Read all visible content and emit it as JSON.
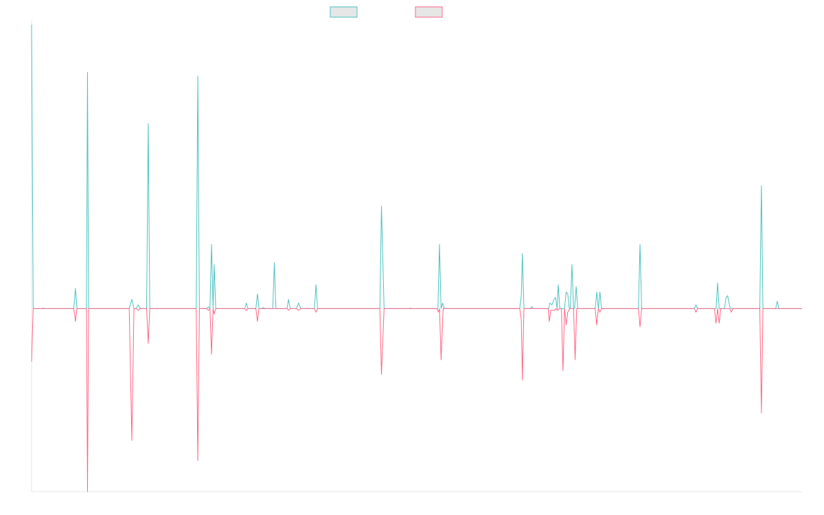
{
  "chart_data": {
    "type": "line",
    "title": "",
    "xlabel": "",
    "ylabel": "",
    "grid": false,
    "legend": {
      "position": "top-center"
    },
    "x_range": [
      0,
      146
    ],
    "y_range": [
      -100,
      155
    ],
    "series": [
      {
        "color": "#4bc0c0",
        "fill": "#e6e6e6",
        "points": [
          [
            0,
            155
          ],
          [
            0.3,
            0
          ],
          [
            2,
            0
          ],
          [
            2.2,
            0.3
          ],
          [
            2.4,
            0
          ],
          [
            8,
            0
          ],
          [
            8.3,
            11
          ],
          [
            8.6,
            0
          ],
          [
            10.4,
            0
          ],
          [
            10.6,
            129
          ],
          [
            10.8,
            0
          ],
          [
            18.5,
            0
          ],
          [
            19,
            5
          ],
          [
            19.4,
            0
          ],
          [
            19.8,
            0
          ],
          [
            20.2,
            2
          ],
          [
            20.6,
            0
          ],
          [
            21.8,
            0
          ],
          [
            22.1,
            101
          ],
          [
            22.4,
            0
          ],
          [
            31.2,
            0
          ],
          [
            31.5,
            127
          ],
          [
            31.8,
            0
          ],
          [
            33.2,
            0
          ],
          [
            33.5,
            1
          ],
          [
            33.8,
            0
          ],
          [
            34.1,
            35
          ],
          [
            34.4,
            0
          ],
          [
            34.6,
            24
          ],
          [
            34.9,
            0
          ],
          [
            40.4,
            0
          ],
          [
            40.7,
            3
          ],
          [
            41,
            0
          ],
          [
            42.5,
            0
          ],
          [
            42.8,
            8
          ],
          [
            43.1,
            0
          ],
          [
            43.6,
            0
          ],
          [
            43.9,
            0.5
          ],
          [
            44.2,
            0
          ],
          [
            45.7,
            0
          ],
          [
            46,
            25
          ],
          [
            46.3,
            0
          ],
          [
            48.4,
            0
          ],
          [
            48.7,
            5
          ],
          [
            49,
            0
          ],
          [
            50.2,
            0
          ],
          [
            50.6,
            3
          ],
          [
            51,
            0
          ],
          [
            53.6,
            0
          ],
          [
            53.9,
            13
          ],
          [
            54.2,
            0
          ],
          [
            66,
            0
          ],
          [
            66.3,
            56
          ],
          [
            66.8,
            0
          ],
          [
            71.6,
            0
          ],
          [
            71.8,
            0.3
          ],
          [
            72,
            0
          ],
          [
            77,
            0
          ],
          [
            77.3,
            35
          ],
          [
            77.6,
            0
          ],
          [
            77.9,
            3
          ],
          [
            78.2,
            0
          ],
          [
            92.5,
            0
          ],
          [
            92.8,
            7
          ],
          [
            93,
            30
          ],
          [
            93.3,
            0
          ],
          [
            94.5,
            0
          ],
          [
            94.8,
            1
          ],
          [
            95.1,
            0
          ],
          [
            98,
            0
          ],
          [
            98.2,
            3
          ],
          [
            98.6,
            2
          ],
          [
            99,
            5
          ],
          [
            99.3,
            6
          ],
          [
            99.6,
            0
          ],
          [
            99.8,
            13
          ],
          [
            100.1,
            0
          ],
          [
            101,
            0
          ],
          [
            101.3,
            9
          ],
          [
            101.6,
            8
          ],
          [
            101.9,
            0
          ],
          [
            102.1,
            0
          ],
          [
            102.4,
            24
          ],
          [
            102.7,
            0
          ],
          [
            102.9,
            0
          ],
          [
            103.2,
            12
          ],
          [
            103.5,
            0
          ],
          [
            106.8,
            0
          ],
          [
            107.1,
            9
          ],
          [
            107.4,
            0
          ],
          [
            107.7,
            9
          ],
          [
            108,
            0
          ],
          [
            115,
            0
          ],
          [
            115.3,
            35
          ],
          [
            115.6,
            0
          ],
          [
            125.6,
            0
          ],
          [
            125.9,
            2
          ],
          [
            126.2,
            0
          ],
          [
            129.7,
            0
          ],
          [
            130,
            14
          ],
          [
            130.3,
            0
          ],
          [
            131.3,
            0
          ],
          [
            131.6,
            6
          ],
          [
            131.9,
            7
          ],
          [
            132.3,
            1
          ],
          [
            132.6,
            0
          ],
          [
            138,
            0
          ],
          [
            138.3,
            67
          ],
          [
            138.6,
            0
          ],
          [
            141,
            0
          ],
          [
            141.3,
            4
          ],
          [
            141.6,
            0
          ],
          [
            146,
            0
          ]
        ]
      },
      {
        "color": "#ff6384",
        "fill": "#e6e6e6",
        "points": [
          [
            0,
            -29
          ],
          [
            0.3,
            0
          ],
          [
            8,
            0
          ],
          [
            8.3,
            -7
          ],
          [
            8.6,
            0
          ],
          [
            10.4,
            0
          ],
          [
            10.6,
            -100
          ],
          [
            10.8,
            0
          ],
          [
            18.5,
            0
          ],
          [
            19,
            -72
          ],
          [
            19.4,
            0
          ],
          [
            19.8,
            0
          ],
          [
            20.2,
            -1
          ],
          [
            20.6,
            0
          ],
          [
            21.8,
            0
          ],
          [
            22.1,
            -19
          ],
          [
            22.4,
            0
          ],
          [
            31.2,
            0
          ],
          [
            31.5,
            -83
          ],
          [
            31.8,
            0
          ],
          [
            33.2,
            0
          ],
          [
            33.5,
            -1
          ],
          [
            33.8,
            0
          ],
          [
            34.1,
            -25
          ],
          [
            34.4,
            0
          ],
          [
            34.6,
            -3
          ],
          [
            34.9,
            0
          ],
          [
            40.4,
            0
          ],
          [
            40.7,
            -1
          ],
          [
            41,
            0
          ],
          [
            42.5,
            0
          ],
          [
            42.8,
            -7
          ],
          [
            43.1,
            0
          ],
          [
            48.4,
            0
          ],
          [
            48.7,
            -1
          ],
          [
            49,
            0
          ],
          [
            50.2,
            0
          ],
          [
            50.6,
            -1
          ],
          [
            51,
            0
          ],
          [
            53.6,
            0
          ],
          [
            53.9,
            -2
          ],
          [
            54.2,
            0
          ],
          [
            66,
            0
          ],
          [
            66.3,
            -36
          ],
          [
            66.8,
            0
          ],
          [
            76.8,
            0
          ],
          [
            77.1,
            -2
          ],
          [
            77.3,
            0
          ],
          [
            77.6,
            -28
          ],
          [
            78,
            0
          ],
          [
            92.5,
            0
          ],
          [
            92.8,
            -6
          ],
          [
            93,
            -39
          ],
          [
            93.3,
            0
          ],
          [
            97.9,
            0
          ],
          [
            98.1,
            -7
          ],
          [
            98.4,
            -1
          ],
          [
            98.7,
            -1
          ],
          [
            99.1,
            -1
          ],
          [
            99.4,
            0
          ],
          [
            99.7,
            -1
          ],
          [
            100,
            0
          ],
          [
            100.4,
            0
          ],
          [
            100.7,
            -34
          ],
          [
            101,
            0
          ],
          [
            101.3,
            -9
          ],
          [
            101.6,
            -2
          ],
          [
            102,
            0
          ],
          [
            102.7,
            0
          ],
          [
            103,
            -28
          ],
          [
            103.3,
            0
          ],
          [
            106.8,
            0
          ],
          [
            107.1,
            -9
          ],
          [
            107.4,
            0
          ],
          [
            107.7,
            -2
          ],
          [
            108,
            0
          ],
          [
            115,
            0
          ],
          [
            115.3,
            -10
          ],
          [
            115.6,
            0
          ],
          [
            125.6,
            0
          ],
          [
            125.9,
            -2
          ],
          [
            126.2,
            0
          ],
          [
            129.4,
            0
          ],
          [
            129.7,
            -8
          ],
          [
            130,
            0
          ],
          [
            130.3,
            -8
          ],
          [
            130.6,
            0
          ],
          [
            132.3,
            0
          ],
          [
            132.6,
            -2
          ],
          [
            132.9,
            0
          ],
          [
            138,
            0
          ],
          [
            138.3,
            -57
          ],
          [
            138.6,
            0
          ],
          [
            141,
            0
          ],
          [
            141.3,
            0
          ],
          [
            141.6,
            0
          ],
          [
            146,
            0
          ]
        ]
      }
    ]
  }
}
